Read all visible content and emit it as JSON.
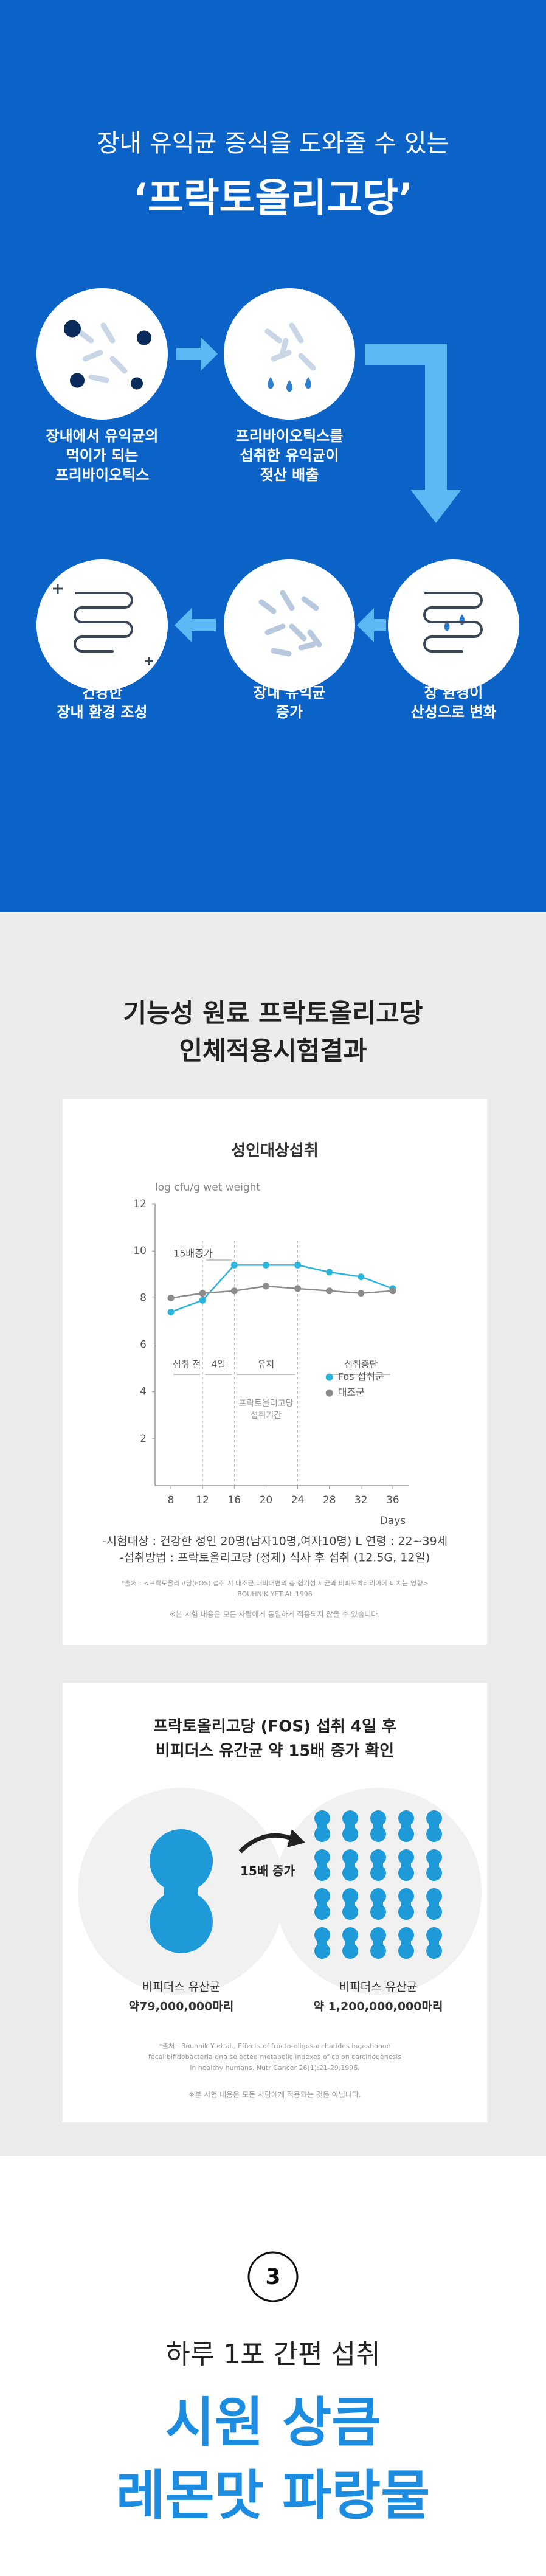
{
  "intro": {
    "title": "장내 유익균 증식을 도와줄 수 있는",
    "headline": "‘프락토올리고당’"
  },
  "steps": [
    {
      "label": [
        "장내에서 유익균의",
        "먹이가 되는",
        "프리바이오틱스"
      ]
    },
    {
      "label": [
        "프리바이오틱스를",
        "섭취한 유익균이",
        "젖산 배출"
      ]
    },
    {
      "label": [
        "장 환경이",
        "산성으로 변화"
      ]
    },
    {
      "label": [
        "장내 유익균",
        "증가"
      ]
    },
    {
      "label": [
        "건강한",
        "장내 환경 조성"
      ]
    }
  ],
  "study": {
    "title": [
      "기능성 원료 프락토올리고당",
      "인체적용시험결과"
    ],
    "notes": [
      "-시험대상 : 건강한 성인 20명(남자10명,여자10명) L 연령 : 22~39세",
      "-섭취방법 : 프락토올리고당 (정제) 식사 후 섭취 (12.5G, 12일)"
    ],
    "source": [
      "*출처 : <프락토올리고당(FOS) 섭취 시 대조군 대비대변의 총 혐기성 세균과 비피도박테리아에 미치는 영향>",
      "BOUHNIK YET AL.1996"
    ],
    "disclaimer": "※본 시험 내용은 모든 사람에게 동일하게 적용되지 않을 수 있습니다."
  },
  "chart_data": {
    "type": "line",
    "title": "성인대상섭취",
    "y_label": "log cfu/g wet weight",
    "x_label": "Days",
    "x": [
      8,
      12,
      16,
      20,
      24,
      28,
      32,
      36
    ],
    "xlim": [
      6,
      38
    ],
    "xticks": [
      8,
      12,
      16,
      20,
      24,
      28,
      32,
      36
    ],
    "ylim": [
      0,
      12
    ],
    "yticks": [
      2,
      4,
      6,
      8,
      10,
      12
    ],
    "series": [
      {
        "name": "Fos 섭취군",
        "color": "#2bb5dc",
        "values": [
          7.4,
          7.9,
          9.4,
          9.4,
          9.4,
          9.1,
          8.9,
          8.4
        ]
      },
      {
        "name": "대조군",
        "color": "#8c8c8c",
        "values": [
          8.0,
          8.2,
          8.3,
          8.5,
          8.4,
          8.3,
          8.2,
          8.3
        ]
      }
    ],
    "annotations": {
      "increase": "15배증가",
      "periods": [
        "섭취 전",
        "4일",
        "유지",
        "섭취중단"
      ],
      "intake": [
        "프락토올리고당",
        "섭취기간"
      ]
    }
  },
  "result": {
    "title": [
      "프락토올리고당 (FOS) 섭취 4일 후",
      "비피더스 유간균 약 15배 증가 확인"
    ],
    "increase": "15배 증가",
    "before": [
      "비피더스 유산균",
      "약79,000,000마리"
    ],
    "after": [
      "비피더스 유산균",
      "약 1,200,000,000마리"
    ],
    "source": [
      "*출처 : Bouhnik Y et al., Effects of fructo-oligosaccharides ingestionon",
      "fecal bifidobacteria dna selected metabolic indexes of colon carcinogenesis",
      "in healthy humans. Nutr Cancer 26(1):21-29,1996."
    ],
    "disclaimer": "※본 시험 내용은 모든 사람에게 적용되는 것은 아닙니다."
  },
  "feature": {
    "number": "3",
    "title": "하루 1포 간편 섭취",
    "headline": [
      "시원 상큼",
      "레몬맛 파랑물"
    ]
  }
}
